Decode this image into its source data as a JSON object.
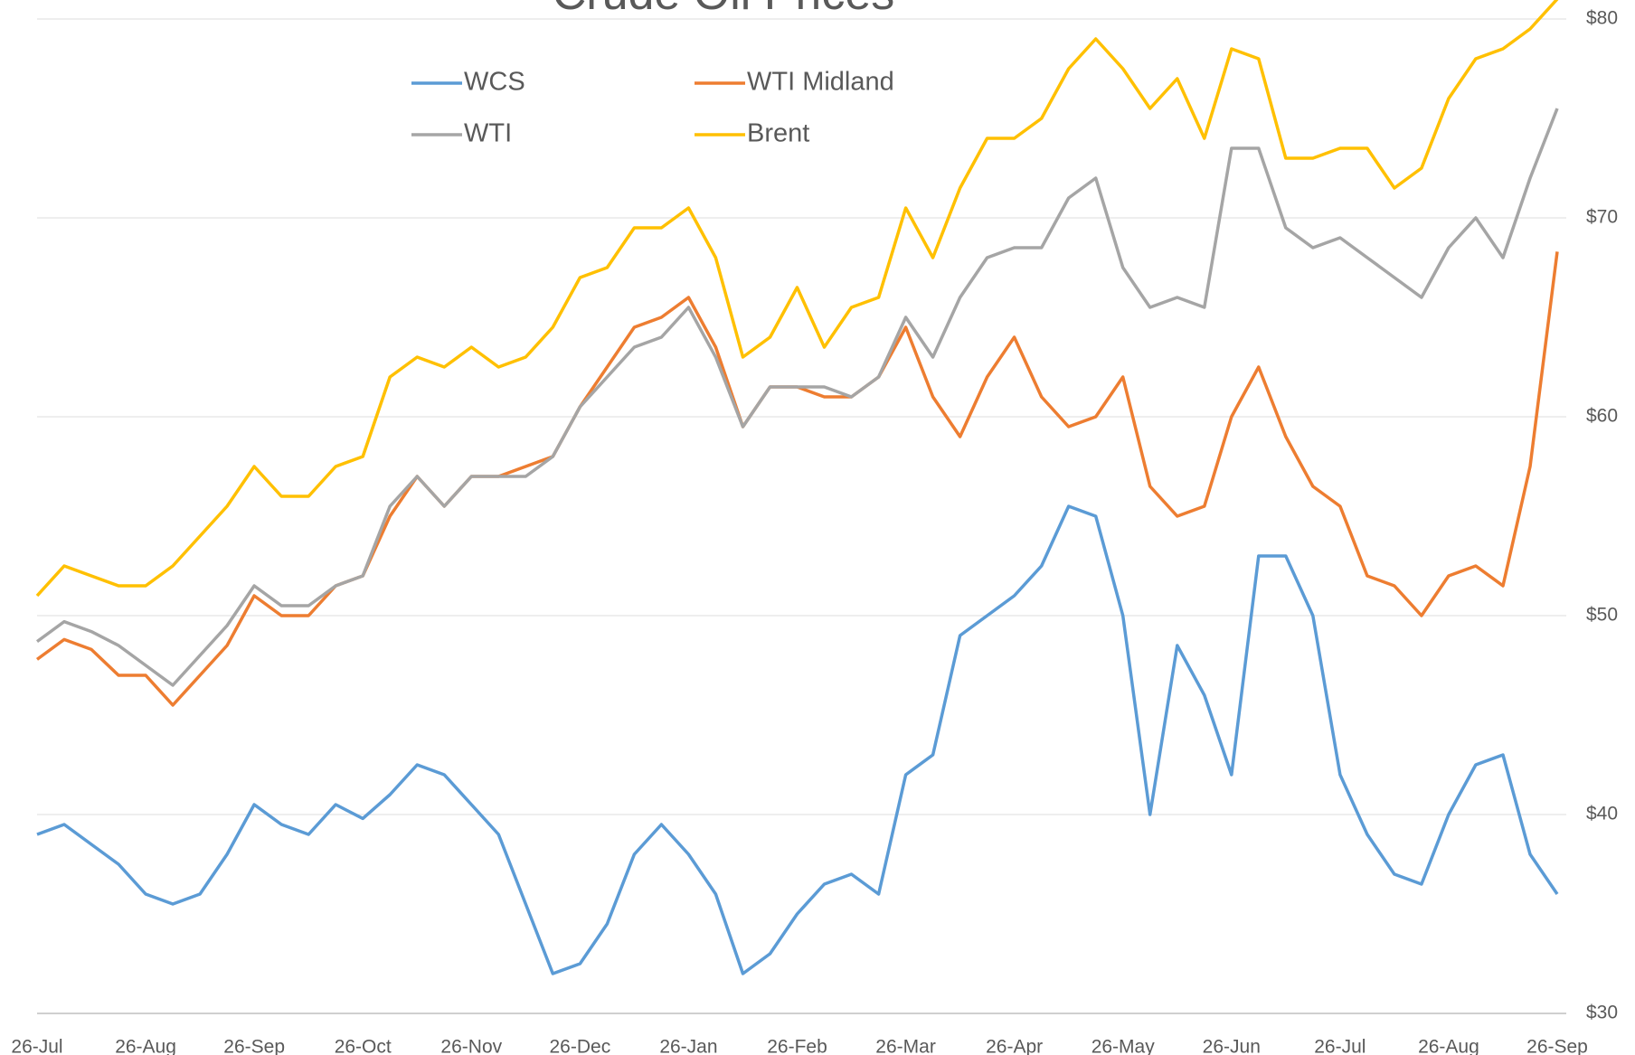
{
  "chart_data": {
    "type": "line",
    "title": "Crude Oil Prices",
    "categories": [
      "26-Jul",
      null,
      null,
      null,
      "26-Aug",
      null,
      null,
      null,
      "26-Sep",
      null,
      null,
      null,
      "26-Oct",
      null,
      null,
      null,
      "26-Nov",
      null,
      null,
      null,
      "26-Dec",
      null,
      null,
      null,
      "26-Jan",
      null,
      null,
      null,
      "26-Feb",
      null,
      null,
      null,
      "26-Mar",
      null,
      null,
      null,
      "26-Apr",
      null,
      null,
      null,
      "26-May",
      null,
      null,
      null,
      "26-Jun",
      null,
      null,
      null,
      "26-Jul",
      null,
      null,
      null,
      "26-Aug",
      null,
      null,
      null,
      "26-Sep"
    ],
    "series": [
      {
        "name": "WCS",
        "color": "#5b9bd5",
        "values": [
          39,
          39.5,
          38.5,
          37.5,
          36,
          35.5,
          36,
          38,
          40.5,
          39.5,
          39,
          40.5,
          39.8,
          41,
          42.5,
          42,
          40.5,
          39,
          35.5,
          32,
          32.5,
          34.5,
          38,
          39.5,
          38,
          36,
          32,
          33,
          35,
          36.5,
          37,
          36,
          42,
          43,
          49,
          50,
          51,
          52.5,
          55.5,
          55,
          50,
          40,
          48.5,
          46,
          42,
          53,
          53,
          50,
          42,
          39,
          37,
          36.5,
          40,
          42.5,
          43,
          38,
          36
        ]
      },
      {
        "name": "WTI Midland",
        "color": "#ed7d31",
        "values": [
          47.8,
          48.8,
          48.3,
          47,
          47,
          45.5,
          47,
          48.5,
          51,
          50,
          50,
          51.5,
          52,
          55,
          57,
          55.5,
          57,
          57,
          57.5,
          58,
          60.5,
          62.5,
          64.5,
          65,
          66,
          63.5,
          59.5,
          61.5,
          61.5,
          61,
          61,
          62,
          64.5,
          61,
          59,
          62,
          64,
          61,
          59.5,
          60,
          62,
          56.5,
          55,
          55.5,
          60,
          62.5,
          59,
          56.5,
          55.5,
          52,
          51.5,
          50,
          52,
          52.5,
          51.5,
          57.5,
          68.3
        ]
      },
      {
        "name": "WTI",
        "color": "#a5a5a5",
        "values": [
          48.7,
          49.7,
          49.2,
          48.5,
          47.5,
          46.5,
          48,
          49.5,
          51.5,
          50.5,
          50.5,
          51.5,
          52,
          55.5,
          57,
          55.5,
          57,
          57,
          57,
          58,
          60.5,
          62,
          63.5,
          64,
          65.5,
          63,
          59.5,
          61.5,
          61.5,
          61.5,
          61,
          62,
          65,
          63,
          66,
          68,
          68.5,
          68.5,
          71,
          72,
          67.5,
          65.5,
          66,
          65.5,
          73.5,
          73.5,
          69.5,
          68.5,
          69,
          68,
          67,
          66,
          68.5,
          70,
          68,
          72,
          75.5
        ]
      },
      {
        "name": "Brent",
        "color": "#ffc000",
        "values": [
          51,
          52.5,
          52,
          51.5,
          51.5,
          52.5,
          54,
          55.5,
          57.5,
          56,
          56,
          57.5,
          58,
          62,
          63,
          62.5,
          63.5,
          62.5,
          63,
          64.5,
          67,
          67.5,
          69.5,
          69.5,
          70.5,
          68,
          63,
          64,
          66.5,
          63.5,
          65.5,
          66,
          70.5,
          68,
          71.5,
          74,
          74,
          75,
          77.5,
          79,
          77.5,
          75.5,
          77,
          74,
          78.5,
          78,
          73,
          73,
          73.5,
          73.5,
          71.5,
          72.5,
          76,
          78,
          78.5,
          79.5,
          81
        ]
      }
    ],
    "ylim": [
      30,
      80
    ],
    "yticks": [
      {
        "value": 30,
        "label": "$30"
      },
      {
        "value": 40,
        "label": "$40"
      },
      {
        "value": 50,
        "label": "$50"
      },
      {
        "value": 60,
        "label": "$60"
      },
      {
        "value": 70,
        "label": "$70"
      },
      {
        "value": 80,
        "label": "$80"
      }
    ],
    "y_axis_side": "right",
    "grid": true
  }
}
